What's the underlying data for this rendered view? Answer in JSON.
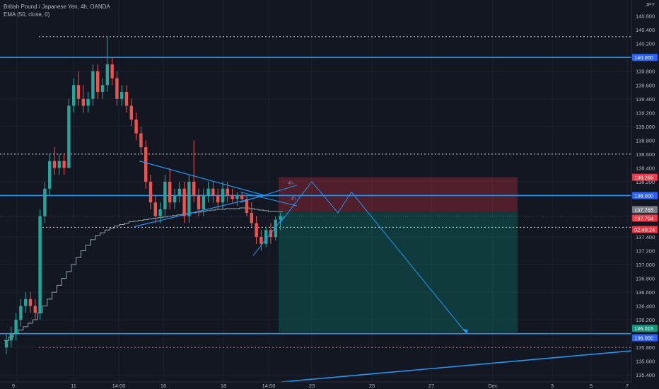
{
  "legend": {
    "symbol_line": "British Pound / Japanese Yen, 4h, OANDA",
    "indicator_line": "EMA (50, close, 0)"
  },
  "currency_label": "JPY",
  "colors": {
    "background": "#131722",
    "grid": "#1e222d",
    "up": "#26a69a",
    "down": "#ef5350",
    "hline": "#2196f3",
    "dotted": "#d1d4dc",
    "ema": "#90a4ae",
    "stop_zone": "rgba(242,54,69,0.28)",
    "target_zone": "rgba(8,153,129,0.28)"
  },
  "price_axis": {
    "ticks": [
      "140.600",
      "140.400",
      "140.200",
      "139.800",
      "139.600",
      "139.400",
      "139.200",
      "139.000",
      "138.800",
      "138.600",
      "138.400",
      "138.200",
      "137.400",
      "137.200",
      "137.000",
      "136.800",
      "136.600",
      "136.400",
      "136.200",
      "135.800",
      "135.600",
      "135.400"
    ]
  },
  "time_axis": {
    "ticks": [
      "9",
      "11",
      "14:00",
      "16",
      "18",
      "14:00",
      "23",
      "25",
      "27",
      "Dec",
      "3",
      "5",
      "7"
    ]
  },
  "price_badges": [
    {
      "text": "140.000",
      "style": "blue"
    },
    {
      "text": "138.265",
      "style": "red"
    },
    {
      "text": "138.000",
      "style": "blue"
    },
    {
      "text": "137.765",
      "style": "gray"
    },
    {
      "text": "137.704",
      "style": "red"
    },
    {
      "text": "02:40:24",
      "style": "red"
    },
    {
      "text": "136.015",
      "style": "green"
    },
    {
      "text": "136.000",
      "style": "blue"
    }
  ],
  "drawing_labels": [
    "4h",
    "4h"
  ],
  "chart_data": {
    "type": "candlestick",
    "symbol": "British Pound / Japanese Yen, 4h, OANDA",
    "indicator": "EMA (50, close, 0)",
    "ylim": [
      135.3,
      140.75
    ],
    "horizontal_lines": [
      140.0,
      138.0,
      136.0
    ],
    "dotted_lines": [
      140.3,
      138.6,
      137.54,
      135.8
    ],
    "position_tool": {
      "entry": 137.765,
      "stop": 138.265,
      "target": 136.015
    },
    "last_price": 137.704,
    "candles": [
      [
        135.8,
        136.0,
        135.7,
        135.9
      ],
      [
        135.9,
        136.1,
        135.8,
        136.0
      ],
      [
        136.0,
        136.3,
        135.9,
        136.2
      ],
      [
        136.2,
        136.5,
        136.1,
        136.4
      ],
      [
        136.4,
        136.6,
        136.3,
        136.5
      ],
      [
        136.5,
        136.6,
        136.3,
        136.4
      ],
      [
        136.4,
        136.5,
        136.2,
        136.3
      ],
      [
        136.3,
        137.8,
        136.2,
        137.7
      ],
      [
        137.7,
        138.2,
        137.6,
        138.1
      ],
      [
        138.1,
        138.6,
        138.0,
        138.5
      ],
      [
        138.5,
        138.7,
        138.3,
        138.4
      ],
      [
        138.4,
        138.6,
        138.3,
        138.5
      ],
      [
        138.5,
        138.6,
        138.3,
        138.4
      ],
      [
        138.4,
        139.4,
        138.4,
        139.3
      ],
      [
        139.3,
        139.7,
        139.2,
        139.6
      ],
      [
        139.6,
        139.8,
        139.3,
        139.4
      ],
      [
        139.4,
        139.6,
        139.2,
        139.3
      ],
      [
        139.3,
        139.5,
        139.2,
        139.4
      ],
      [
        139.4,
        139.9,
        139.3,
        139.8
      ],
      [
        139.8,
        139.9,
        139.4,
        139.5
      ],
      [
        139.5,
        139.7,
        139.4,
        139.6
      ],
      [
        139.6,
        140.3,
        139.5,
        139.9
      ],
      [
        139.9,
        140.0,
        139.6,
        139.7
      ],
      [
        139.7,
        139.8,
        139.3,
        139.4
      ],
      [
        139.4,
        139.6,
        139.3,
        139.5
      ],
      [
        139.5,
        139.6,
        139.2,
        139.3
      ],
      [
        139.3,
        139.4,
        139.0,
        139.1
      ],
      [
        139.1,
        139.2,
        138.8,
        138.9
      ],
      [
        138.9,
        139.0,
        138.6,
        138.7
      ],
      [
        138.7,
        138.8,
        138.1,
        138.2
      ],
      [
        138.2,
        138.3,
        137.8,
        137.9
      ],
      [
        137.9,
        138.0,
        137.6,
        137.7
      ],
      [
        137.7,
        137.9,
        137.6,
        137.8
      ],
      [
        137.8,
        138.3,
        137.7,
        138.2
      ],
      [
        138.2,
        138.4,
        137.8,
        137.9
      ],
      [
        137.9,
        138.1,
        137.8,
        138.0
      ],
      [
        138.0,
        138.2,
        137.9,
        138.1
      ],
      [
        138.1,
        138.2,
        137.6,
        137.7
      ],
      [
        137.7,
        138.3,
        137.6,
        138.2
      ],
      [
        138.2,
        138.8,
        137.9,
        138.0
      ],
      [
        138.0,
        138.1,
        137.7,
        137.8
      ],
      [
        137.8,
        138.1,
        137.7,
        138.0
      ],
      [
        138.0,
        138.2,
        137.9,
        138.1
      ],
      [
        138.1,
        138.2,
        137.9,
        138.0
      ],
      [
        138.0,
        138.1,
        137.8,
        137.9
      ],
      [
        137.9,
        138.2,
        137.8,
        138.1
      ],
      [
        138.1,
        138.2,
        137.9,
        138.0
      ],
      [
        138.0,
        138.1,
        137.9,
        137.95
      ],
      [
        137.95,
        138.05,
        137.85,
        138.0
      ],
      [
        138.0,
        138.05,
        137.9,
        137.95
      ],
      [
        137.95,
        138.0,
        137.7,
        137.75
      ],
      [
        137.75,
        137.9,
        137.55,
        137.6
      ],
      [
        137.6,
        137.7,
        137.3,
        137.4
      ],
      [
        137.4,
        137.5,
        137.2,
        137.3
      ],
      [
        137.3,
        137.55,
        137.25,
        137.5
      ],
      [
        137.5,
        137.6,
        137.3,
        137.4
      ],
      [
        137.4,
        137.7,
        137.35,
        137.65
      ],
      [
        137.65,
        137.75,
        137.5,
        137.704
      ]
    ],
    "ema": [
      135.9,
      135.95,
      136.0,
      136.05,
      136.1,
      136.15,
      136.2,
      136.3,
      136.4,
      136.5,
      136.6,
      136.7,
      136.8,
      136.9,
      137.0,
      137.1,
      137.2,
      137.28,
      137.36,
      137.42,
      137.46,
      137.5,
      137.53,
      137.56,
      137.58,
      137.6,
      137.62,
      137.63,
      137.64,
      137.65,
      137.66,
      137.67,
      137.68,
      137.69,
      137.7,
      137.71,
      137.72,
      137.73,
      137.74,
      137.75,
      137.76,
      137.77,
      137.78,
      137.79,
      137.8,
      137.8,
      137.81,
      137.81,
      137.81,
      137.82,
      137.82,
      137.81,
      137.8,
      137.79,
      137.78,
      137.77,
      137.77,
      137.77
    ]
  }
}
